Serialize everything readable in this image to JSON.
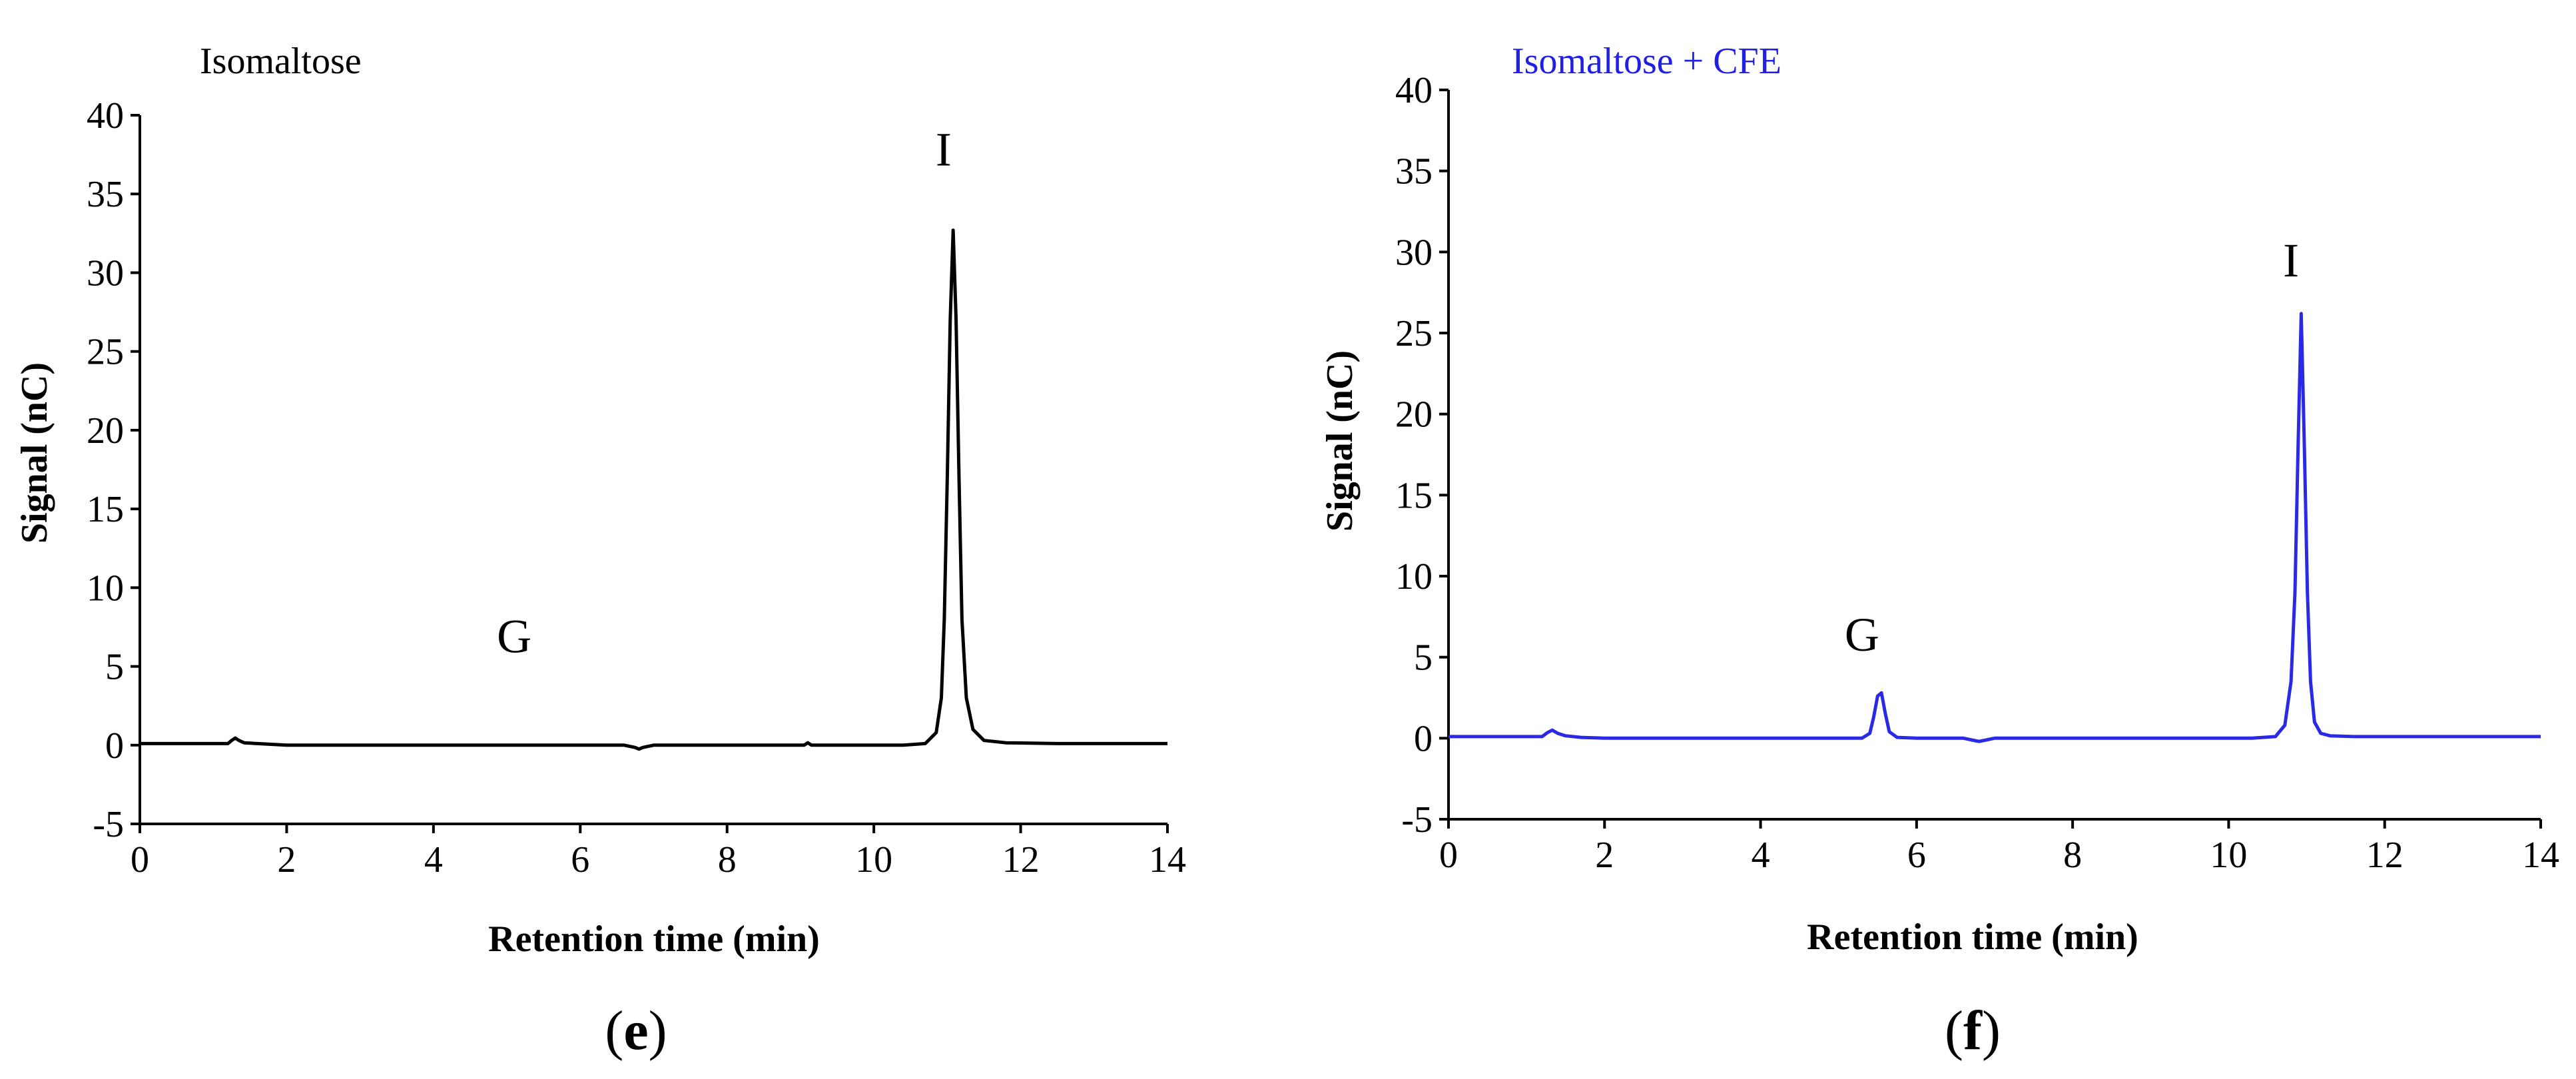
{
  "chart_data": [
    {
      "type": "line",
      "panel_label": "e",
      "title": "Isomaltose",
      "title_color": "#000000",
      "xlabel": "Retention time (min)",
      "ylabel": "Signal (nC)",
      "xlim": [
        0,
        14
      ],
      "ylim": [
        -5,
        40
      ],
      "x_ticks": [
        0,
        2,
        4,
        6,
        8,
        10,
        12,
        14
      ],
      "y_ticks": [
        -5,
        0,
        5,
        10,
        15,
        20,
        25,
        30,
        35,
        40
      ],
      "grid": false,
      "series": [
        {
          "color": "#000000",
          "x": [
            0,
            1.2,
            1.25,
            1.3,
            1.35,
            1.42,
            1.6,
            2.0,
            4.0,
            6.6,
            6.75,
            6.8,
            6.85,
            7.0,
            8.0,
            9.05,
            9.1,
            9.15,
            9.3,
            10.4,
            10.7,
            10.85,
            10.92,
            10.96,
            11.0,
            11.04,
            11.08,
            11.12,
            11.16,
            11.2,
            11.26,
            11.35,
            11.5,
            11.8,
            12.5,
            14
          ],
          "y": [
            0.1,
            0.1,
            0.3,
            0.45,
            0.3,
            0.15,
            0.1,
            0.0,
            0.0,
            0.0,
            -0.15,
            -0.25,
            -0.15,
            0.0,
            0.0,
            0.0,
            0.15,
            0.0,
            0.0,
            0.0,
            0.1,
            0.8,
            3.0,
            8.0,
            17.0,
            27.0,
            32.7,
            27.0,
            17.0,
            8.0,
            3.0,
            1.0,
            0.3,
            0.15,
            0.1,
            0.1
          ]
        }
      ],
      "annotations": [
        {
          "text": "G",
          "x": 5.1,
          "y": 5.9
        },
        {
          "text": "I",
          "x": 10.95,
          "y": 36.8
        }
      ]
    },
    {
      "type": "line",
      "panel_label": "f",
      "title": "Isomaltose + CFE",
      "title_color": "#1f1fe6",
      "xlabel": "Retention time (min)",
      "ylabel": "Signal (nC)",
      "xlim": [
        0,
        14
      ],
      "ylim": [
        -5,
        40
      ],
      "x_ticks": [
        0,
        2,
        4,
        6,
        8,
        10,
        12,
        14
      ],
      "y_ticks": [
        -5,
        0,
        5,
        10,
        15,
        20,
        25,
        30,
        35,
        40
      ],
      "grid": false,
      "series": [
        {
          "color": "#2a2ae6",
          "x": [
            0,
            1.2,
            1.27,
            1.33,
            1.4,
            1.5,
            1.7,
            2.0,
            4.0,
            5.3,
            5.4,
            5.45,
            5.5,
            5.55,
            5.6,
            5.65,
            5.75,
            6.0,
            6.6,
            6.75,
            6.8,
            6.85,
            7.0,
            8.0,
            9.0,
            10.3,
            10.6,
            10.72,
            10.8,
            10.85,
            10.89,
            10.93,
            10.97,
            11.01,
            11.05,
            11.1,
            11.18,
            11.3,
            11.6,
            12.5,
            14
          ],
          "y": [
            0.1,
            0.1,
            0.35,
            0.5,
            0.3,
            0.15,
            0.05,
            0.0,
            0.0,
            0.0,
            0.3,
            1.3,
            2.6,
            2.8,
            1.5,
            0.4,
            0.05,
            0.0,
            0.0,
            -0.15,
            -0.2,
            -0.15,
            0.0,
            0.0,
            0.0,
            0.0,
            0.1,
            0.8,
            3.5,
            9.0,
            18.0,
            26.2,
            18.0,
            9.0,
            3.5,
            1.0,
            0.3,
            0.15,
            0.1,
            0.1,
            0.1
          ]
        }
      ],
      "annotations": [
        {
          "text": "G",
          "x": 5.3,
          "y": 5.4
        },
        {
          "text": "I",
          "x": 10.8,
          "y": 28.5
        }
      ]
    }
  ]
}
